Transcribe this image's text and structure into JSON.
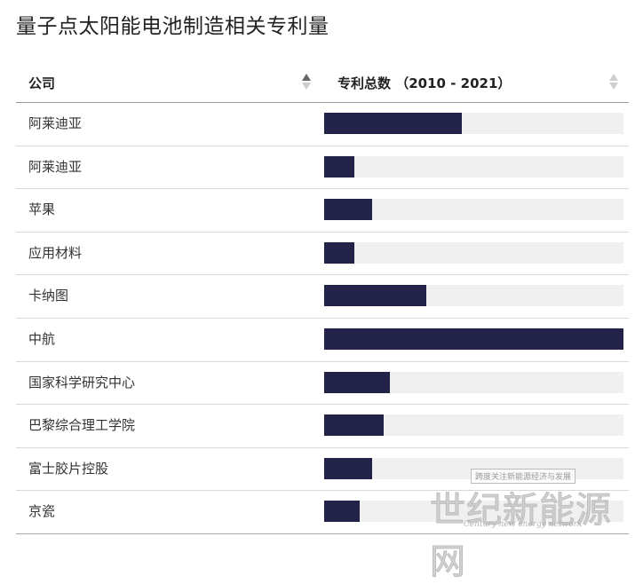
{
  "title": "量子点太阳能电池制造相关专利量",
  "table": {
    "col_company": "公司",
    "col_patents": "专利总数 （2010 - 2021）"
  },
  "colors": {
    "bar": "#23234a",
    "track": "#f0f0f0"
  },
  "chart_data": {
    "type": "bar",
    "orientation": "horizontal",
    "title": "量子点太阳能电池制造相关专利量",
    "xlabel": "专利总数 （2010 - 2021）",
    "ylabel": "公司",
    "xlim": [
      0,
      100
    ],
    "categories": [
      "阿莱迪亚",
      "阿莱迪亚",
      "苹果",
      "应用材料",
      "卡纳图",
      "中航",
      "国家科学研究中心",
      "巴黎综合理工学院",
      "富士胶片控股",
      "京瓷"
    ],
    "values": [
      46,
      10,
      16,
      10,
      34,
      100,
      22,
      20,
      16,
      12
    ]
  },
  "watermark": {
    "top": "跨度关注新能源经济与发展",
    "main": "世纪新能源网",
    "sub": "Century new energy network"
  }
}
